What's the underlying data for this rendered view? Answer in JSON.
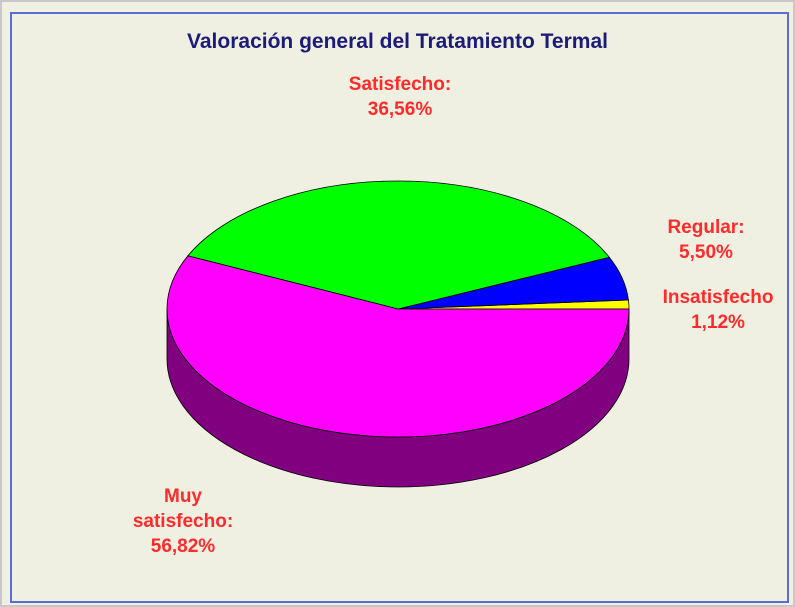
{
  "chart_data": {
    "type": "pie",
    "title": "Valoración general del Tratamiento Termal",
    "categories": [
      "Insatisfecho",
      "Regular:",
      "Satisfecho:",
      "Muy satisfecho:"
    ],
    "values": [
      1.12,
      5.5,
      36.56,
      56.82
    ],
    "value_labels": [
      "1,12%",
      "5,50%",
      "36,56%",
      "56,82%"
    ],
    "colors": [
      "#ffff00",
      "#0000ff",
      "#00ff00",
      "#ff00ff"
    ]
  }
}
